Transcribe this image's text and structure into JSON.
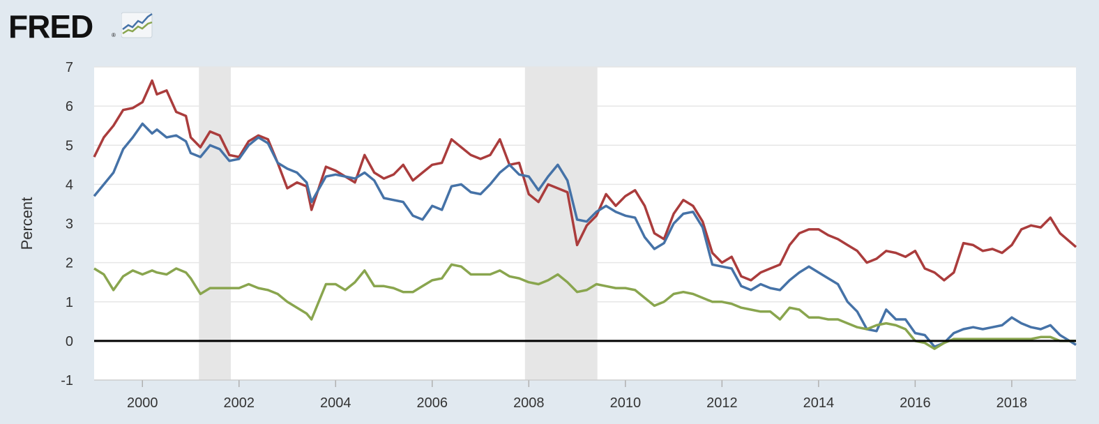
{
  "brand": {
    "name": "FRED",
    "mark": "®"
  },
  "chart_data": {
    "type": "line",
    "title": "",
    "xlabel": "",
    "ylabel": "Percent",
    "xlim": [
      1999.0,
      2019.33
    ],
    "ylim": [
      -1,
      7
    ],
    "yticks": [
      -1,
      0,
      1,
      2,
      3,
      4,
      5,
      6,
      7
    ],
    "xticks": [
      2000,
      2002,
      2004,
      2006,
      2008,
      2010,
      2012,
      2014,
      2016,
      2018
    ],
    "grid": true,
    "legend": "none",
    "zero_line": true,
    "recessions": [
      [
        2001.17,
        2001.83
      ],
      [
        2007.92,
        2009.42
      ]
    ],
    "series": [
      {
        "name": "red-series",
        "color": "#aa3c3c",
        "x": [
          1999.0,
          1999.2,
          1999.4,
          1999.6,
          1999.8,
          2000.0,
          2000.2,
          2000.3,
          2000.5,
          2000.7,
          2000.9,
          2001.0,
          2001.2,
          2001.4,
          2001.6,
          2001.8,
          2002.0,
          2002.2,
          2002.4,
          2002.6,
          2002.8,
          2003.0,
          2003.2,
          2003.4,
          2003.5,
          2003.8,
          2004.0,
          2004.2,
          2004.4,
          2004.6,
          2004.8,
          2005.0,
          2005.2,
          2005.4,
          2005.6,
          2005.8,
          2006.0,
          2006.2,
          2006.4,
          2006.6,
          2006.8,
          2007.0,
          2007.2,
          2007.4,
          2007.6,
          2007.8,
          2008.0,
          2008.2,
          2008.4,
          2008.6,
          2008.8,
          2009.0,
          2009.2,
          2009.4,
          2009.6,
          2009.8,
          2010.0,
          2010.2,
          2010.4,
          2010.6,
          2010.8,
          2011.0,
          2011.2,
          2011.4,
          2011.6,
          2011.8,
          2012.0,
          2012.2,
          2012.4,
          2012.6,
          2012.8,
          2013.0,
          2013.2,
          2013.4,
          2013.6,
          2013.8,
          2014.0,
          2014.2,
          2014.4,
          2014.6,
          2014.8,
          2015.0,
          2015.2,
          2015.4,
          2015.6,
          2015.8,
          2016.0,
          2016.2,
          2016.4,
          2016.6,
          2016.8,
          2017.0,
          2017.2,
          2017.4,
          2017.6,
          2017.8,
          2018.0,
          2018.2,
          2018.4,
          2018.6,
          2018.8,
          2019.0,
          2019.33
        ],
        "values": [
          4.7,
          5.2,
          5.5,
          5.9,
          5.95,
          6.1,
          6.65,
          6.3,
          6.4,
          5.85,
          5.75,
          5.2,
          4.95,
          5.35,
          5.25,
          4.75,
          4.7,
          5.1,
          5.25,
          5.15,
          4.55,
          3.9,
          4.05,
          3.95,
          3.35,
          4.45,
          4.35,
          4.2,
          4.05,
          4.75,
          4.3,
          4.15,
          4.25,
          4.5,
          4.1,
          4.3,
          4.5,
          4.55,
          5.15,
          4.95,
          4.75,
          4.65,
          4.75,
          5.15,
          4.5,
          4.55,
          3.75,
          3.55,
          4.0,
          3.9,
          3.8,
          2.45,
          2.95,
          3.2,
          3.75,
          3.45,
          3.7,
          3.85,
          3.45,
          2.75,
          2.6,
          3.25,
          3.6,
          3.45,
          3.05,
          2.25,
          2.0,
          2.15,
          1.65,
          1.55,
          1.75,
          1.85,
          1.95,
          2.45,
          2.75,
          2.85,
          2.85,
          2.7,
          2.6,
          2.45,
          2.3,
          2.0,
          2.1,
          2.3,
          2.25,
          2.15,
          2.3,
          1.85,
          1.75,
          1.55,
          1.75,
          2.5,
          2.45,
          2.3,
          2.35,
          2.25,
          2.45,
          2.85,
          2.95,
          2.9,
          3.15,
          2.75,
          2.4
        ]
      },
      {
        "name": "blue-series",
        "color": "#4572a7",
        "x": [
          1999.0,
          1999.2,
          1999.4,
          1999.6,
          1999.8,
          2000.0,
          2000.2,
          2000.3,
          2000.5,
          2000.7,
          2000.9,
          2001.0,
          2001.2,
          2001.4,
          2001.6,
          2001.8,
          2002.0,
          2002.2,
          2002.4,
          2002.6,
          2002.8,
          2003.0,
          2003.2,
          2003.4,
          2003.5,
          2003.8,
          2004.0,
          2004.2,
          2004.4,
          2004.6,
          2004.8,
          2005.0,
          2005.2,
          2005.4,
          2005.6,
          2005.8,
          2006.0,
          2006.2,
          2006.4,
          2006.6,
          2006.8,
          2007.0,
          2007.2,
          2007.4,
          2007.6,
          2007.8,
          2008.0,
          2008.2,
          2008.4,
          2008.6,
          2008.8,
          2009.0,
          2009.2,
          2009.4,
          2009.6,
          2009.8,
          2010.0,
          2010.2,
          2010.4,
          2010.6,
          2010.8,
          2011.0,
          2011.2,
          2011.4,
          2011.6,
          2011.8,
          2012.0,
          2012.2,
          2012.4,
          2012.6,
          2012.8,
          2013.0,
          2013.2,
          2013.4,
          2013.6,
          2013.8,
          2014.0,
          2014.2,
          2014.4,
          2014.6,
          2014.8,
          2015.0,
          2015.2,
          2015.4,
          2015.6,
          2015.8,
          2016.0,
          2016.2,
          2016.4,
          2016.6,
          2016.8,
          2017.0,
          2017.2,
          2017.4,
          2017.6,
          2017.8,
          2018.0,
          2018.2,
          2018.4,
          2018.6,
          2018.8,
          2019.0,
          2019.33
        ],
        "values": [
          3.7,
          4.0,
          4.3,
          4.9,
          5.2,
          5.55,
          5.3,
          5.4,
          5.2,
          5.25,
          5.1,
          4.8,
          4.7,
          5.0,
          4.9,
          4.6,
          4.65,
          5.0,
          5.2,
          5.05,
          4.55,
          4.4,
          4.3,
          4.05,
          3.55,
          4.2,
          4.25,
          4.2,
          4.15,
          4.3,
          4.1,
          3.65,
          3.6,
          3.55,
          3.2,
          3.1,
          3.45,
          3.35,
          3.95,
          4.0,
          3.8,
          3.75,
          4.0,
          4.3,
          4.5,
          4.25,
          4.2,
          3.85,
          4.2,
          4.5,
          4.1,
          3.1,
          3.05,
          3.3,
          3.45,
          3.3,
          3.2,
          3.15,
          2.65,
          2.35,
          2.5,
          3.0,
          3.25,
          3.3,
          2.9,
          1.95,
          1.9,
          1.85,
          1.4,
          1.3,
          1.45,
          1.35,
          1.3,
          1.55,
          1.75,
          1.9,
          1.75,
          1.6,
          1.45,
          1.0,
          0.75,
          0.3,
          0.25,
          0.8,
          0.55,
          0.55,
          0.2,
          0.15,
          -0.15,
          -0.05,
          0.2,
          0.3,
          0.35,
          0.3,
          0.35,
          0.4,
          0.6,
          0.45,
          0.35,
          0.3,
          0.4,
          0.15,
          -0.1
        ]
      },
      {
        "name": "green-series",
        "color": "#89a54e",
        "x": [
          1999.0,
          1999.2,
          1999.4,
          1999.6,
          1999.8,
          2000.0,
          2000.2,
          2000.3,
          2000.5,
          2000.7,
          2000.9,
          2001.0,
          2001.2,
          2001.4,
          2001.6,
          2001.8,
          2002.0,
          2002.2,
          2002.4,
          2002.6,
          2002.8,
          2003.0,
          2003.2,
          2003.4,
          2003.5,
          2003.8,
          2004.0,
          2004.2,
          2004.4,
          2004.6,
          2004.8,
          2005.0,
          2005.2,
          2005.4,
          2005.6,
          2005.8,
          2006.0,
          2006.2,
          2006.4,
          2006.6,
          2006.8,
          2007.0,
          2007.2,
          2007.4,
          2007.6,
          2007.8,
          2008.0,
          2008.2,
          2008.4,
          2008.6,
          2008.8,
          2009.0,
          2009.2,
          2009.4,
          2009.6,
          2009.8,
          2010.0,
          2010.2,
          2010.4,
          2010.6,
          2010.8,
          2011.0,
          2011.2,
          2011.4,
          2011.6,
          2011.8,
          2012.0,
          2012.2,
          2012.4,
          2012.6,
          2012.8,
          2013.0,
          2013.2,
          2013.4,
          2013.6,
          2013.8,
          2014.0,
          2014.2,
          2014.4,
          2014.6,
          2014.8,
          2015.0,
          2015.2,
          2015.4,
          2015.6,
          2015.8,
          2016.0,
          2016.2,
          2016.4,
          2016.6,
          2016.8,
          2017.0,
          2017.2,
          2017.4,
          2017.6,
          2017.8,
          2018.0,
          2018.2,
          2018.4,
          2018.6,
          2018.8,
          2019.0,
          2019.33
        ],
        "values": [
          1.85,
          1.7,
          1.3,
          1.65,
          1.8,
          1.7,
          1.8,
          1.75,
          1.7,
          1.85,
          1.75,
          1.6,
          1.2,
          1.35,
          1.35,
          1.35,
          1.35,
          1.45,
          1.35,
          1.3,
          1.2,
          1.0,
          0.85,
          0.7,
          0.55,
          1.45,
          1.45,
          1.3,
          1.5,
          1.8,
          1.4,
          1.4,
          1.35,
          1.25,
          1.25,
          1.4,
          1.55,
          1.6,
          1.95,
          1.9,
          1.7,
          1.7,
          1.7,
          1.8,
          1.65,
          1.6,
          1.5,
          1.45,
          1.55,
          1.7,
          1.5,
          1.25,
          1.3,
          1.45,
          1.4,
          1.35,
          1.35,
          1.3,
          1.1,
          0.9,
          1.0,
          1.2,
          1.25,
          1.2,
          1.1,
          1.0,
          1.0,
          0.95,
          0.85,
          0.8,
          0.75,
          0.75,
          0.55,
          0.85,
          0.8,
          0.6,
          0.6,
          0.55,
          0.55,
          0.45,
          0.35,
          0.3,
          0.4,
          0.45,
          0.4,
          0.3,
          0.0,
          -0.05,
          -0.2,
          -0.05,
          0.05,
          0.05,
          0.05,
          0.05,
          0.05,
          0.05,
          0.05,
          0.05,
          0.05,
          0.1,
          0.1,
          0.0,
          0.0
        ]
      }
    ]
  }
}
